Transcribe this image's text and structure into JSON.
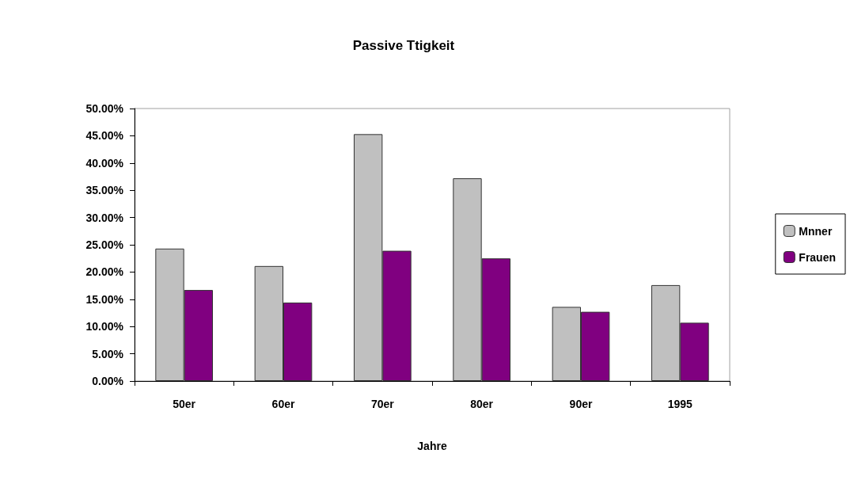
{
  "chart_data": {
    "type": "bar",
    "title": "Passive Ttigkeit",
    "xlabel": "Jahre",
    "categories": [
      "50er",
      "60er",
      "70er",
      "80er",
      "90er",
      "1995"
    ],
    "series": [
      {
        "name": "Mnner",
        "color": "#c0c0c0",
        "values": [
          24.3,
          21.1,
          45.3,
          37.2,
          13.6,
          17.6
        ]
      },
      {
        "name": "Frauen",
        "color": "#800080",
        "values": [
          16.7,
          14.4,
          23.9,
          22.5,
          12.7,
          10.7
        ]
      }
    ],
    "ylim": [
      0,
      50
    ],
    "yticks": [
      {
        "value": 0,
        "label": "0.00%"
      },
      {
        "value": 5,
        "label": "5.00%"
      },
      {
        "value": 10,
        "label": "10.00%"
      },
      {
        "value": 15,
        "label": "15.00%"
      },
      {
        "value": 20,
        "label": "20.00%"
      },
      {
        "value": 25,
        "label": "25.00%"
      },
      {
        "value": 30,
        "label": "30.00%"
      },
      {
        "value": 35,
        "label": "35.00%"
      },
      {
        "value": 40,
        "label": "40.00%"
      },
      {
        "value": 45,
        "label": "45.00%"
      },
      {
        "value": 50,
        "label": "50.00%"
      }
    ],
    "grid": false,
    "legend": "right"
  }
}
